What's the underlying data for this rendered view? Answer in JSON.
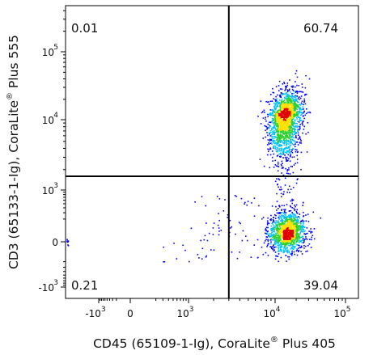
{
  "chart_data": {
    "type": "scatter",
    "subtype": "flow-cytometry-density-dot-plot",
    "xlabel": {
      "text": "CD45 (65109-1-Ig), CoraLite",
      "sup": "®",
      "suffix": " Plus 405"
    },
    "ylabel": {
      "text": "CD3 (65133-1-Ig), CoraLite",
      "sup": "®",
      "suffix": " Plus 555"
    },
    "x_axis": {
      "scale": "biexponential",
      "ticks": [
        {
          "base": "-10",
          "exp": "3",
          "value": -1000
        },
        {
          "base": "0",
          "exp": "",
          "value": 0
        },
        {
          "base": "10",
          "exp": "3",
          "value": 1000
        },
        {
          "base": "10",
          "exp": "4",
          "value": 10000
        },
        {
          "base": "10",
          "exp": "5",
          "value": 100000
        }
      ]
    },
    "y_axis": {
      "scale": "biexponential",
      "ticks": [
        {
          "base": "-10",
          "exp": "3",
          "value": -1000
        },
        {
          "base": "0",
          "exp": "",
          "value": 0
        },
        {
          "base": "10",
          "exp": "3",
          "value": 1000
        },
        {
          "base": "10",
          "exp": "4",
          "value": 10000
        },
        {
          "base": "10",
          "exp": "5",
          "value": 100000
        }
      ]
    },
    "gate": {
      "x_threshold": 3000,
      "y_threshold": 1600
    },
    "quadrants": {
      "upper_left": "0.01",
      "upper_right": "60.74",
      "lower_left": "0.21",
      "lower_right": "39.04"
    },
    "populations": [
      {
        "name": "CD45+CD3+",
        "x_center": 14000,
        "y_center": 11000
      },
      {
        "name": "CD45+CD3-",
        "x_center": 15000,
        "y_center": 60
      }
    ],
    "colors": {
      "density_low": "#0000ff",
      "density_mid_low": "#00c0ff",
      "density_mid": "#30d030",
      "density_high": "#ffe000",
      "density_peak": "#e00000",
      "gate_line": "#000000"
    },
    "grid": false,
    "legend": "none"
  }
}
